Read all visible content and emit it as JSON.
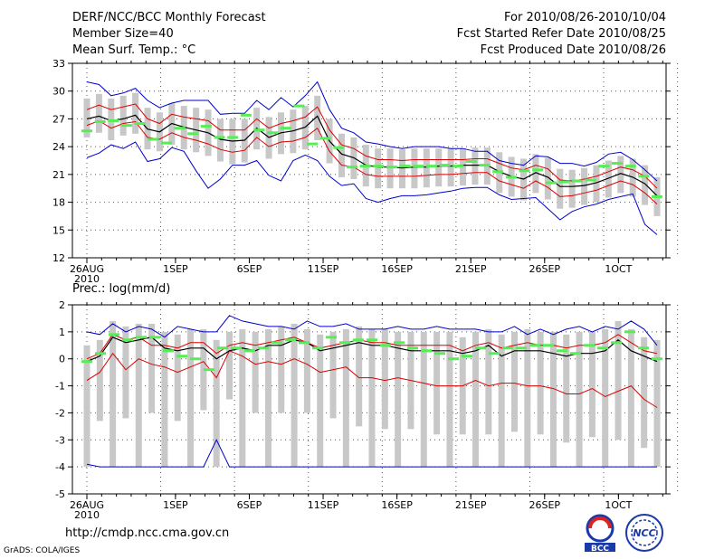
{
  "header": {
    "title": "DERF/NCC/BCC Monthly Forecast",
    "member_size": "Member Size=40",
    "variable1": "Mean Surf. Temp.: °C",
    "forecast_range": "For 2010/08/26-2010/10/04",
    "refer_date": "Fcst Started Refer Date 2010/08/25",
    "produced_date": "Fcst Produced Date 2010/08/26"
  },
  "footer": {
    "url": "http://cmdp.ncc.cma.gov.cn",
    "grads": "GrADS: COLA/IGES",
    "logo_bcc": "BCC",
    "logo_ncc": "NCC"
  },
  "colors": {
    "envelope": "#0000cc",
    "spread": "#dd0000",
    "ensemble_mean": "#000000",
    "member": "#55ee55",
    "box": "#c8c8c8"
  },
  "chart_data": [
    {
      "type": "line",
      "title": "Mean Surf. Temp.: °C",
      "ylim": [
        12,
        33
      ],
      "yticks": [
        12,
        15,
        18,
        21,
        24,
        27,
        30,
        33
      ],
      "x_tick_labels": [
        "26AUG\n2010",
        "1SEP",
        "6SEP",
        "11SEP",
        "16SEP",
        "21SEP",
        "26SEP",
        "1OCT"
      ],
      "x_tick_days": [
        0,
        6,
        11,
        16,
        21,
        26,
        31,
        36
      ],
      "n_days": 40,
      "series": [
        {
          "name": "max",
          "values": [
            31.0,
            30.7,
            29.5,
            29.8,
            30.3,
            29.0,
            28.2,
            28.7,
            29.0,
            29.0,
            29.0,
            27.5,
            27.6,
            27.6,
            29.0,
            28.0,
            29.3,
            28.3,
            29.5,
            31.0,
            28.0,
            26.0,
            25.5,
            24.5,
            24.3,
            24.0,
            23.8,
            24.0,
            24.0,
            24.0,
            23.8,
            23.8,
            23.5,
            23.5,
            22.5,
            22.2,
            22.0,
            23.0,
            22.9,
            22.2,
            22.2,
            21.9,
            22.3,
            23.2,
            23.4,
            22.6,
            21.5,
            20.3
          ]
        },
        {
          "name": "spread_upper",
          "values": [
            28.0,
            28.5,
            28.0,
            28.3,
            28.6,
            27.0,
            26.5,
            27.5,
            27.2,
            27.0,
            26.8,
            25.8,
            25.8,
            25.8,
            27.0,
            26.0,
            26.5,
            26.8,
            27.2,
            28.3,
            25.8,
            24.2,
            23.8,
            23.0,
            22.6,
            22.6,
            22.5,
            22.6,
            22.6,
            22.6,
            22.6,
            22.6,
            22.7,
            22.7,
            22.2,
            21.7,
            21.5,
            22.0,
            21.6,
            20.4,
            20.3,
            20.5,
            20.8,
            21.3,
            21.8,
            21.5,
            20.8,
            19.5
          ]
        },
        {
          "name": "mean",
          "values": [
            27.0,
            27.3,
            26.8,
            27.0,
            27.4,
            25.9,
            25.6,
            26.5,
            26.1,
            25.8,
            25.5,
            24.8,
            24.6,
            24.7,
            26.0,
            25.0,
            25.5,
            25.7,
            26.1,
            27.3,
            24.6,
            23.2,
            22.8,
            22.0,
            21.8,
            21.8,
            21.7,
            21.8,
            21.8,
            21.9,
            21.9,
            22.0,
            22.0,
            22.0,
            21.3,
            20.8,
            20.5,
            21.2,
            20.7,
            19.7,
            19.7,
            19.8,
            20.1,
            20.6,
            21.1,
            20.7,
            20.0,
            18.7
          ]
        },
        {
          "name": "spread_lower",
          "values": [
            26.3,
            26.8,
            26.0,
            26.5,
            26.7,
            25.0,
            24.8,
            25.5,
            25.0,
            24.7,
            24.3,
            23.7,
            23.4,
            23.6,
            25.0,
            24.0,
            24.5,
            24.6,
            25.0,
            26.0,
            23.5,
            22.0,
            21.8,
            21.0,
            20.8,
            20.8,
            20.8,
            20.8,
            20.9,
            21.0,
            21.0,
            21.1,
            21.2,
            21.2,
            20.3,
            19.9,
            19.5,
            20.3,
            19.6,
            18.6,
            18.7,
            19.0,
            19.3,
            19.8,
            20.3,
            19.9,
            19.0,
            17.8
          ]
        },
        {
          "name": "min",
          "values": [
            22.8,
            23.3,
            24.2,
            23.8,
            24.5,
            22.4,
            22.7,
            23.9,
            23.5,
            21.4,
            19.5,
            20.5,
            22.0,
            22.0,
            22.5,
            20.9,
            20.3,
            22.5,
            23.1,
            22.5,
            20.8,
            19.8,
            20.0,
            18.4,
            18.0,
            18.4,
            18.7,
            18.7,
            18.8,
            19.0,
            19.2,
            19.5,
            19.6,
            19.6,
            18.8,
            18.3,
            18.4,
            18.5,
            17.3,
            16.1,
            17.0,
            17.5,
            17.8,
            18.3,
            18.6,
            18.9,
            15.6,
            14.5
          ]
        },
        {
          "name": "member_marks",
          "values": [
            25.7,
            26.7,
            26.8,
            26.3,
            26.5,
            24.8,
            24.4,
            26.0,
            25.4,
            26.2,
            25.0,
            25.0,
            27.4,
            25.8,
            25.5,
            26.0,
            28.4,
            24.3,
            24.9,
            23.9,
            21.8,
            21.9,
            21.9,
            21.8,
            21.9,
            21.9,
            21.9,
            22.0,
            21.9,
            22.4,
            22.0,
            21.3,
            20.7,
            21.4,
            21.5,
            20.1,
            20.2,
            20.3,
            20.4,
            21.9,
            22.2,
            21.9,
            20.8,
            18.6
          ]
        }
      ]
    },
    {
      "type": "line",
      "title": "Prec.: log(mm/d)",
      "ylim": [
        -5,
        2
      ],
      "yticks": [
        -5,
        -4,
        -3,
        -2,
        -1,
        0,
        1,
        2
      ],
      "x_tick_labels": [
        "26AUG\n2010",
        "1SEP",
        "6SEP",
        "11SEP",
        "16SEP",
        "21SEP",
        "26SEP",
        "1OCT"
      ],
      "x_tick_days": [
        0,
        6,
        11,
        16,
        21,
        26,
        31,
        36
      ],
      "n_days": 40,
      "series": [
        {
          "name": "max",
          "values": [
            1.0,
            0.9,
            1.3,
            1.0,
            1.2,
            1.1,
            0.8,
            1.2,
            1.1,
            1.0,
            1.0,
            1.6,
            1.4,
            1.3,
            1.2,
            1.2,
            1.1,
            1.4,
            1.2,
            1.2,
            1.3,
            1.1,
            1.1,
            1.1,
            1.2,
            1.1,
            1.1,
            1.2,
            1.1,
            1.1,
            1.1,
            1.0,
            1.0,
            1.2,
            0.9,
            1.1,
            0.9,
            1.1,
            1.2,
            1.0,
            1.2,
            1.1,
            1.4,
            1.1,
            0.5
          ]
        },
        {
          "name": "spread_upper",
          "values": [
            0.0,
            0.2,
            0.9,
            0.7,
            0.8,
            0.5,
            0.5,
            0.4,
            0.6,
            0.6,
            0.2,
            0.5,
            0.6,
            0.5,
            0.6,
            0.7,
            0.8,
            0.6,
            0.4,
            0.5,
            0.6,
            0.7,
            0.6,
            0.6,
            0.5,
            0.5,
            0.5,
            0.5,
            0.5,
            0.3,
            0.5,
            0.6,
            0.4,
            0.5,
            0.6,
            0.5,
            0.5,
            0.4,
            0.5,
            0.5,
            0.6,
            0.9,
            0.6,
            0.3,
            0.2
          ]
        },
        {
          "name": "mean",
          "values": [
            -0.1,
            0.1,
            0.8,
            0.6,
            0.7,
            0.8,
            0.4,
            0.3,
            0.4,
            0.4,
            0.0,
            0.3,
            0.4,
            0.3,
            0.5,
            0.5,
            0.7,
            0.6,
            0.3,
            0.4,
            0.5,
            0.6,
            0.5,
            0.5,
            0.4,
            0.3,
            0.3,
            0.3,
            0.3,
            0.2,
            0.3,
            0.5,
            0.1,
            0.3,
            0.3,
            0.3,
            0.2,
            0.1,
            0.2,
            0.2,
            0.3,
            0.7,
            0.3,
            0.1,
            -0.1
          ]
        },
        {
          "name": "spread_lower",
          "values": [
            -0.8,
            -0.5,
            0.2,
            -0.4,
            0.0,
            -0.2,
            -0.3,
            -0.5,
            -0.3,
            -0.1,
            -0.7,
            0.3,
            0.1,
            -0.2,
            -0.1,
            -0.2,
            0.0,
            -0.2,
            -0.5,
            -0.4,
            -0.3,
            -0.7,
            -0.7,
            -0.8,
            -0.7,
            -0.8,
            -0.9,
            -1.0,
            -1.0,
            -1.0,
            -0.8,
            -1.0,
            -0.9,
            -0.9,
            -1.0,
            -1.0,
            -1.1,
            -1.3,
            -1.3,
            -1.1,
            -1.4,
            -1.2,
            -1.0,
            -1.5,
            -1.8
          ]
        },
        {
          "name": "min",
          "values": [
            -3.9,
            -4.0,
            -4.0,
            -4.0,
            -4.0,
            -4.0,
            -4.0,
            -4.0,
            -4.0,
            -4.0,
            -3.0,
            -4.0,
            -4.0,
            -4.0,
            -4.0,
            -4.0,
            -4.0,
            -4.0,
            -4.0,
            -4.0,
            -4.0,
            -4.0,
            -4.0,
            -4.0,
            -4.0,
            -4.0,
            -4.0,
            -4.0,
            -4.0,
            -4.0,
            -4.0,
            -4.0,
            -4.0,
            -4.0,
            -4.0,
            -4.0,
            -4.0,
            -4.0,
            -4.0,
            -4.0,
            -4.0,
            -4.0,
            -4.0,
            -4.0,
            -4.0
          ]
        },
        {
          "name": "member_marks",
          "values": [
            -0.1,
            0.2,
            0.9,
            0.7,
            0.8,
            0.8,
            0.3,
            0.1,
            0.0,
            -0.4,
            0.4,
            0.4,
            0.3,
            0.4,
            0.6,
            0.7,
            0.6,
            0.4,
            0.8,
            0.6,
            0.7,
            0.7,
            0.5,
            0.6,
            0.4,
            0.3,
            0.2,
            0.0,
            0.1,
            0.4,
            0.2,
            0.4,
            0.4,
            0.5,
            0.5,
            0.3,
            0.2,
            0.5,
            0.4,
            0.6,
            1.0,
            0.4,
            0.0
          ]
        }
      ]
    }
  ]
}
